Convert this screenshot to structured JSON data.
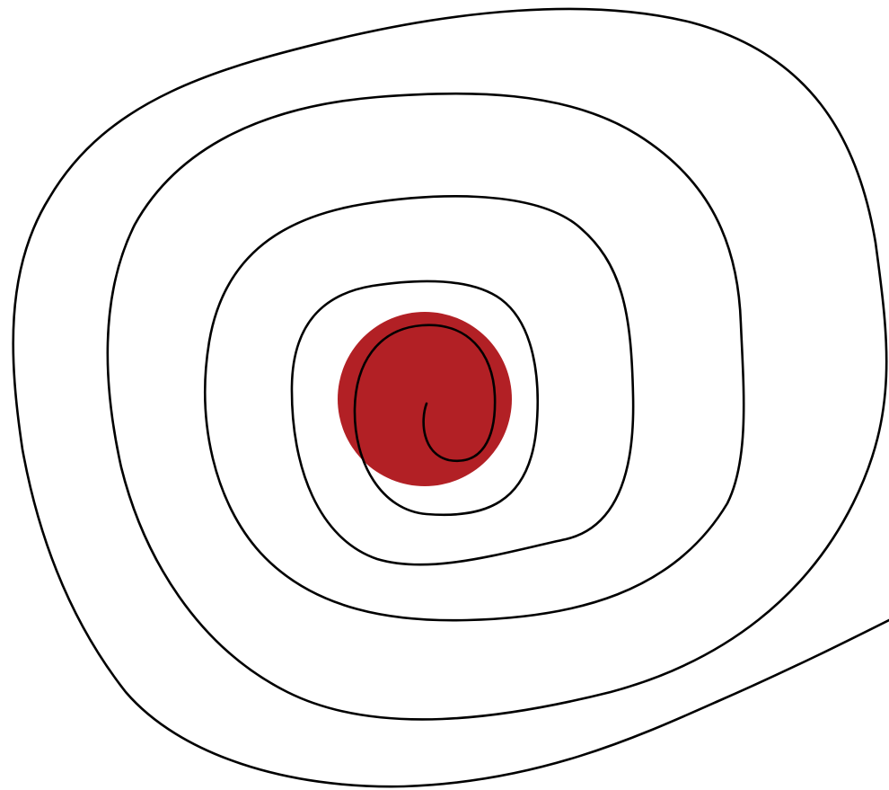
{
  "artwork": {
    "background_color": "#ffffff",
    "spiral": {
      "stroke_color": "#000000",
      "turns": 4.5,
      "direction": "clockwise-outward",
      "tail_exits": "bottom-right"
    },
    "center_disc": {
      "fill_color": "#b22025",
      "shape": "circle"
    }
  }
}
